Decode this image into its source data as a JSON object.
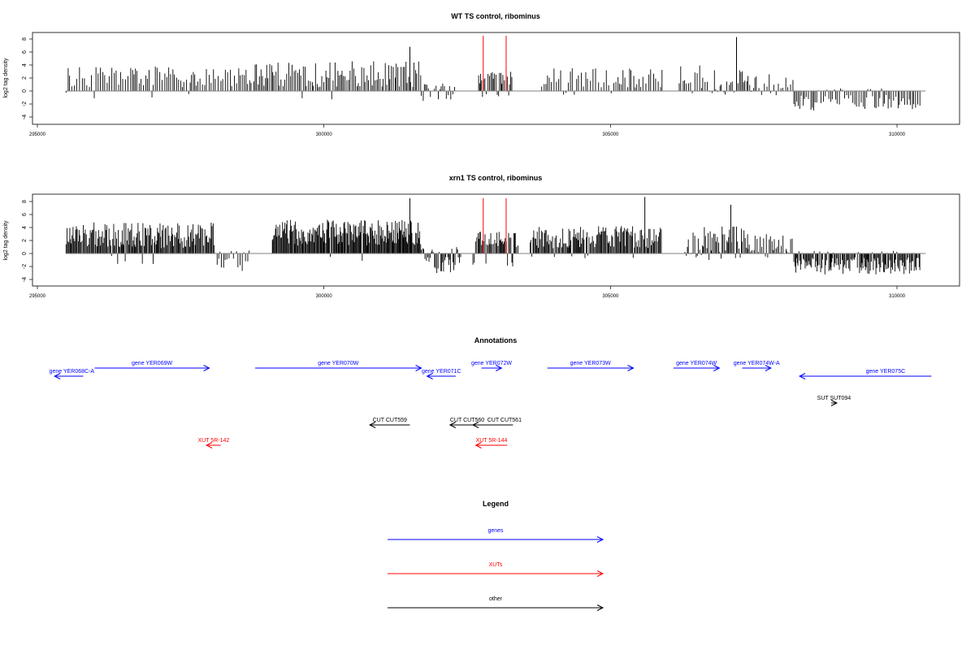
{
  "chart_data": [
    {
      "type": "bar",
      "title": "WT TS control, ribominus",
      "ylabel": "log2 tag density",
      "xlim": [
        295000,
        310500
      ],
      "ylim": [
        -4,
        8
      ],
      "xticks": [
        295000,
        300000,
        305000,
        310000
      ],
      "yticks": [
        -4,
        -2,
        0,
        2,
        4,
        6,
        8
      ],
      "series_color": "#000000",
      "highlight_color": "#ff0000",
      "highlights": [
        {
          "x": 302780,
          "y": 8.5
        },
        {
          "x": 303180,
          "y": 8.5
        }
      ],
      "segments": [
        {
          "start": 295500,
          "end": 298800,
          "mean": 2.2,
          "amp": 1.6,
          "neg": 0.04,
          "neg_mean": 0.8,
          "step": 36
        },
        {
          "start": 298800,
          "end": 301700,
          "mean": 2.6,
          "amp": 2.0,
          "neg": 0.02,
          "neg_mean": 0.8,
          "step": 28
        },
        {
          "start": 301700,
          "end": 302300,
          "mean": 0.6,
          "amp": 0.6,
          "neg": 0.55,
          "neg_mean": 1.3,
          "step": 30
        },
        {
          "start": 302700,
          "end": 303300,
          "mean": 2.0,
          "amp": 1.0,
          "neg": 0.15,
          "neg_mean": 0.6,
          "step": 22
        },
        {
          "start": 303800,
          "end": 305900,
          "mean": 2.0,
          "amp": 1.5,
          "neg": 0.03,
          "neg_mean": 0.5,
          "step": 38
        },
        {
          "start": 306200,
          "end": 307400,
          "mean": 1.8,
          "amp": 2.2,
          "neg": 0.05,
          "neg_mean": 0.5,
          "step": 34
        },
        {
          "start": 307400,
          "end": 308200,
          "mean": 1.2,
          "amp": 1.4,
          "neg": 0.08,
          "neg_mean": 0.6,
          "step": 40
        },
        {
          "start": 308200,
          "end": 310400,
          "mean": 0.2,
          "amp": 0.2,
          "neg": 0.85,
          "neg_mean": 1.8,
          "step": 32
        }
      ],
      "peaks": [
        {
          "x": 301500,
          "y": 6.8
        },
        {
          "x": 307200,
          "y": 8.3
        }
      ]
    },
    {
      "type": "bar",
      "title": "xrn1 TS control, ribominus",
      "ylabel": "log2 tag density",
      "xlim": [
        295000,
        310500
      ],
      "ylim": [
        -4,
        8
      ],
      "xticks": [
        295000,
        300000,
        305000,
        310000
      ],
      "yticks": [
        -4,
        -2,
        0,
        2,
        4,
        6,
        8
      ],
      "series_color": "#000000",
      "highlight_color": "#ff0000",
      "highlights": [
        {
          "x": 302780,
          "y": 8.5
        },
        {
          "x": 303180,
          "y": 8.5
        }
      ],
      "segments": [
        {
          "start": 295500,
          "end": 298100,
          "mean": 2.8,
          "amp": 2.0,
          "neg": 0.04,
          "neg_mean": 1.0,
          "step": 16
        },
        {
          "start": 298100,
          "end": 298700,
          "mean": 0.3,
          "amp": 0.3,
          "neg": 0.6,
          "neg_mean": 1.6,
          "step": 30
        },
        {
          "start": 299100,
          "end": 301700,
          "mean": 3.2,
          "amp": 2.0,
          "neg": 0.02,
          "neg_mean": 0.8,
          "step": 14
        },
        {
          "start": 301700,
          "end": 302400,
          "mean": 0.5,
          "amp": 0.5,
          "neg": 0.65,
          "neg_mean": 1.8,
          "step": 20
        },
        {
          "start": 302600,
          "end": 303400,
          "mean": 2.2,
          "amp": 1.2,
          "neg": 0.2,
          "neg_mean": 1.2,
          "step": 18
        },
        {
          "start": 303600,
          "end": 305900,
          "mean": 2.6,
          "amp": 1.8,
          "neg": 0.05,
          "neg_mean": 0.6,
          "step": 16
        },
        {
          "start": 306300,
          "end": 307400,
          "mean": 2.0,
          "amp": 2.2,
          "neg": 0.05,
          "neg_mean": 0.6,
          "step": 22
        },
        {
          "start": 307400,
          "end": 308200,
          "mean": 1.5,
          "amp": 1.5,
          "neg": 0.08,
          "neg_mean": 0.6,
          "step": 26
        },
        {
          "start": 308200,
          "end": 310400,
          "mean": 0.2,
          "amp": 0.2,
          "neg": 0.9,
          "neg_mean": 1.9,
          "step": 16
        }
      ],
      "peaks": [
        {
          "x": 301500,
          "y": 8.5
        },
        {
          "x": 305600,
          "y": 8.7
        },
        {
          "x": 307100,
          "y": 7.5
        }
      ]
    },
    {
      "type": "annotation-track",
      "title": "Annotations",
      "xlim": [
        295000,
        310500
      ],
      "features": [
        {
          "label": "gene YER069W",
          "start": 296000,
          "end": 298000,
          "strand": "+",
          "row": 0,
          "kind": "gene"
        },
        {
          "label": "gene YER068C-A",
          "start": 295300,
          "end": 295800,
          "strand": "-",
          "row": 1,
          "kind": "gene"
        },
        {
          "label": "gene YER070W",
          "start": 298800,
          "end": 301700,
          "strand": "+",
          "row": 0,
          "kind": "gene"
        },
        {
          "label": "gene YER071C",
          "start": 301800,
          "end": 302300,
          "strand": "-",
          "row": 1,
          "kind": "gene"
        },
        {
          "label": "gene YER072W",
          "start": 302750,
          "end": 303100,
          "strand": "+",
          "row": 0,
          "kind": "gene"
        },
        {
          "label": "gene YER073W",
          "start": 303900,
          "end": 305400,
          "strand": "+",
          "row": 0,
          "kind": "gene"
        },
        {
          "label": "gene YER074W",
          "start": 306100,
          "end": 306900,
          "strand": "+",
          "row": 0,
          "kind": "gene"
        },
        {
          "label": "gene YER074W-A",
          "start": 307300,
          "end": 307800,
          "strand": "+",
          "row": 0,
          "kind": "gene"
        },
        {
          "label": "gene YER075C",
          "start": 308300,
          "end": 310600,
          "strand": "-",
          "row": 1,
          "kind": "gene"
        },
        {
          "label": "SUT SUT094",
          "start": 308850,
          "end": 308950,
          "strand": "+",
          "row": 2,
          "kind": "other"
        },
        {
          "label": "CUT CUT559",
          "start": 300800,
          "end": 301500,
          "strand": "-",
          "row": 3,
          "kind": "other"
        },
        {
          "label": "CUT CUT560",
          "start": 302200,
          "end": 302700,
          "strand": "-",
          "row": 3,
          "kind": "other"
        },
        {
          "label": "CUT CUT561",
          "start": 302600,
          "end": 303300,
          "strand": "-",
          "row": 3,
          "kind": "other"
        },
        {
          "label": "XUT 5R-142",
          "start": 297950,
          "end": 298200,
          "strand": "-",
          "row": 4,
          "kind": "xut"
        },
        {
          "label": "XUT 5R-144",
          "start": 302650,
          "end": 303200,
          "strand": "-",
          "row": 4,
          "kind": "xut"
        }
      ]
    },
    {
      "type": "legend",
      "title": "Legend",
      "entries": [
        {
          "label": "genes",
          "color": "#0000ff"
        },
        {
          "label": "XUTs",
          "color": "#ff0000"
        },
        {
          "label": "other",
          "color": "#000000"
        }
      ]
    }
  ],
  "colors": {
    "gene": "#0000ff",
    "xut": "#ff0000",
    "other": "#000000",
    "axis": "#000000",
    "zero_line": "#808080"
  }
}
